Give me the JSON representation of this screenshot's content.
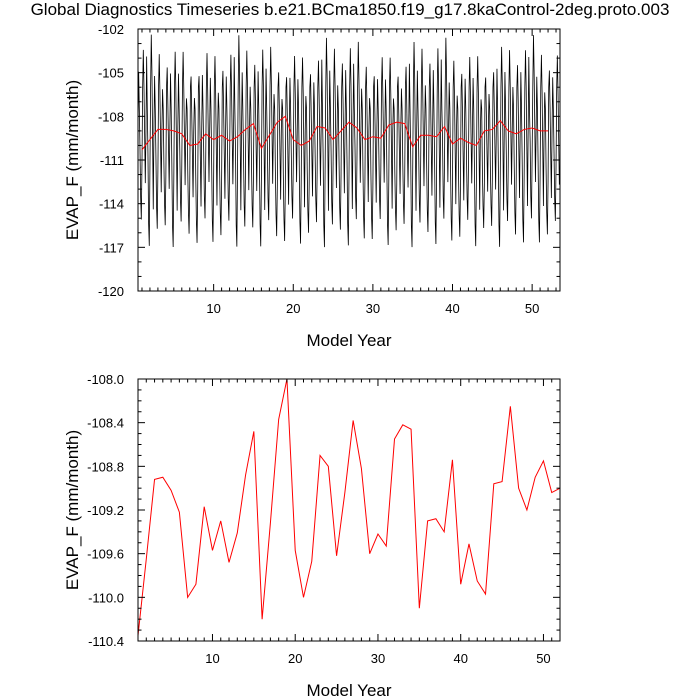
{
  "title": "Global Diagnostics Timeseries b.e21.BCma1850.f19_g17.8kaControl-2deg.proto.003",
  "colors": {
    "monthly": "#000000",
    "annual": "#ff0000"
  },
  "chart_data": [
    {
      "type": "line",
      "xlabel": "Model Year",
      "ylabel": "EVAP_F (mm/month)",
      "xlim": [
        0.5,
        53.5
      ],
      "ylim": [
        -120,
        -102
      ],
      "xticks": [
        10,
        20,
        30,
        40,
        50
      ],
      "yticks": [
        -120,
        -117,
        -114,
        -111,
        -108,
        -105,
        -102
      ],
      "ytick_labels": [
        "-120",
        "-117",
        "-114",
        "-111",
        "-108",
        "-105",
        "-102"
      ],
      "grid": false,
      "series": [
        {
          "color": "#000000",
          "cycle": {
            "months": 12,
            "start_year": 0.5,
            "years": 53,
            "shape": [
              -109.0,
              -105.5,
              -107.5,
              -111.0,
              -114.5,
              -116.0,
              -112.0,
              -106.0,
              -104.0,
              -106.5,
              -110.0,
              -113.5
            ],
            "range": "min -117.7, max -102.5"
          }
        },
        {
          "color": "#ff0000",
          "x": [
            1,
            2,
            3,
            4,
            5,
            6,
            7,
            8,
            9,
            10,
            11,
            12,
            13,
            14,
            15,
            16,
            17,
            18,
            19,
            20,
            21,
            22,
            23,
            24,
            25,
            26,
            27,
            28,
            29,
            30,
            31,
            32,
            33,
            34,
            35,
            36,
            37,
            38,
            39,
            40,
            41,
            42,
            43,
            44,
            45,
            46,
            47,
            48,
            49,
            50,
            51,
            52
          ],
          "y": [
            -110.3,
            -109.6,
            -108.9,
            -108.9,
            -109.0,
            -109.2,
            -110.0,
            -109.9,
            -109.2,
            -109.6,
            -109.3,
            -109.7,
            -109.4,
            -108.9,
            -108.5,
            -110.2,
            -109.3,
            -108.4,
            -108.0,
            -109.6,
            -110.0,
            -109.7,
            -108.7,
            -108.8,
            -109.6,
            -109.0,
            -108.4,
            -108.8,
            -109.6,
            -109.4,
            -109.5,
            -108.6,
            -108.4,
            -108.5,
            -110.1,
            -109.3,
            -109.3,
            -109.4,
            -108.7,
            -109.9,
            -109.5,
            -109.8,
            -110.0,
            -109.0,
            -108.9,
            -108.3,
            -109.0,
            -109.2,
            -108.9,
            -108.8,
            -109.0,
            -109.0
          ]
        }
      ]
    },
    {
      "type": "line",
      "xlabel": "Model Year",
      "ylabel": "EVAP_F (mm/month)",
      "xlim": [
        1,
        52
      ],
      "ylim": [
        -110.4,
        -108.0
      ],
      "xticks": [
        10,
        20,
        30,
        40,
        50
      ],
      "yticks": [
        -110.4,
        -110.0,
        -109.6,
        -109.2,
        -108.8,
        -108.4,
        -108.0
      ],
      "ytick_labels": [
        "-110.4",
        "-110.0",
        "-109.6",
        "-109.2",
        "-108.8",
        "-108.4",
        "-108.0"
      ],
      "grid": false,
      "series": [
        {
          "color": "#ff0000",
          "x": [
            1,
            2,
            3,
            4,
            5,
            6,
            7,
            8,
            9,
            10,
            11,
            12,
            13,
            14,
            15,
            16,
            17,
            18,
            19,
            20,
            21,
            22,
            23,
            24,
            25,
            26,
            27,
            28,
            29,
            30,
            31,
            32,
            33,
            34,
            35,
            36,
            37,
            38,
            39,
            40,
            41,
            42,
            43,
            44,
            45,
            46,
            47,
            48,
            49,
            50,
            51,
            52
          ],
          "y": [
            -110.35,
            -109.65,
            -108.92,
            -108.9,
            -109.02,
            -109.22,
            -110.0,
            -109.88,
            -109.17,
            -109.57,
            -109.3,
            -109.68,
            -109.41,
            -108.88,
            -108.48,
            -110.2,
            -109.32,
            -108.37,
            -108.0,
            -109.57,
            -110.0,
            -109.67,
            -108.7,
            -108.8,
            -109.62,
            -109.04,
            -108.38,
            -108.82,
            -109.6,
            -109.42,
            -109.53,
            -108.55,
            -108.42,
            -108.46,
            -110.1,
            -109.3,
            -109.28,
            -109.4,
            -108.74,
            -109.88,
            -109.51,
            -109.85,
            -109.97,
            -108.96,
            -108.94,
            -108.25,
            -109.0,
            -109.2,
            -108.9,
            -108.75,
            -109.04,
            -109.0
          ]
        }
      ]
    }
  ]
}
